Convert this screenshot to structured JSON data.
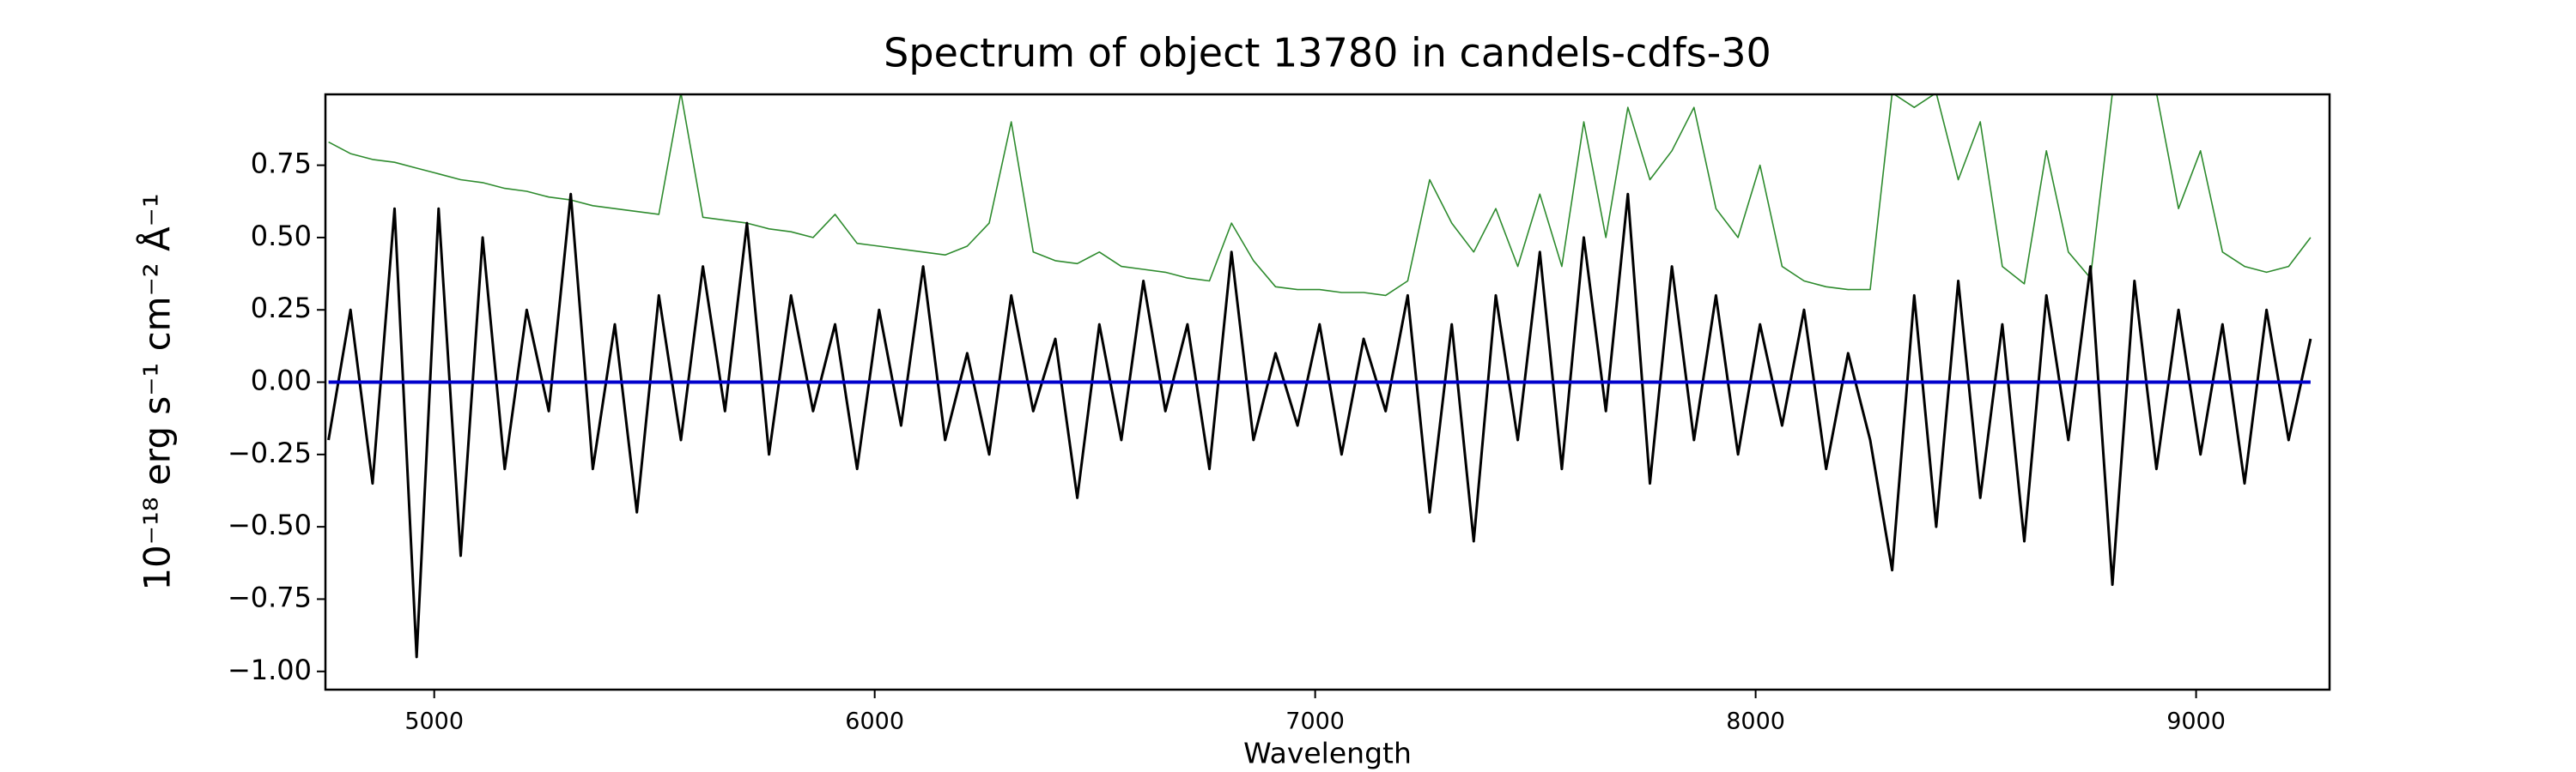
{
  "chart_data": {
    "type": "line",
    "title": "Spectrum of object 13780 in candels-cdfs-30",
    "xlabel": "Wavelength",
    "ylabel": "10⁻¹⁸ erg s⁻¹ cm⁻² Å⁻¹",
    "x": [
      4760,
      4810,
      4860,
      4910,
      4960,
      5010,
      5060,
      5110,
      5160,
      5210,
      5260,
      5310,
      5360,
      5410,
      5460,
      5510,
      5560,
      5610,
      5660,
      5710,
      5760,
      5810,
      5860,
      5910,
      5960,
      6010,
      6060,
      6110,
      6160,
      6210,
      6260,
      6310,
      6360,
      6410,
      6460,
      6510,
      6560,
      6610,
      6660,
      6710,
      6760,
      6810,
      6860,
      6910,
      6960,
      7010,
      7060,
      7110,
      7160,
      7210,
      7260,
      7310,
      7360,
      7410,
      7460,
      7510,
      7560,
      7610,
      7660,
      7710,
      7760,
      7810,
      7860,
      7910,
      7960,
      8010,
      8060,
      8110,
      8160,
      8210,
      8260,
      8310,
      8360,
      8410,
      8460,
      8510,
      8560,
      8610,
      8660,
      8710,
      8760,
      8810,
      8860,
      8910,
      8960,
      9010,
      9060,
      9110,
      9160,
      9210,
      9260
    ],
    "series": [
      {
        "color": "#2e8b2e",
        "width": 1.6,
        "values": [
          0.83,
          0.79,
          0.77,
          0.76,
          0.74,
          0.72,
          0.7,
          0.69,
          0.67,
          0.66,
          0.64,
          0.63,
          0.61,
          0.6,
          0.59,
          0.58,
          1.0,
          0.57,
          0.56,
          0.55,
          0.53,
          0.52,
          0.5,
          0.58,
          0.48,
          0.47,
          0.46,
          0.45,
          0.44,
          0.47,
          0.55,
          0.9,
          0.45,
          0.42,
          0.41,
          0.45,
          0.4,
          0.39,
          0.38,
          0.36,
          0.35,
          0.55,
          0.42,
          0.33,
          0.32,
          0.32,
          0.31,
          0.31,
          0.3,
          0.35,
          0.7,
          0.55,
          0.45,
          0.6,
          0.4,
          0.65,
          0.4,
          0.9,
          0.5,
          0.95,
          0.7,
          0.8,
          0.95,
          0.6,
          0.5,
          0.75,
          0.4,
          0.35,
          0.33,
          0.32,
          0.32,
          1.0,
          0.95,
          1.0,
          0.7,
          0.9,
          0.4,
          0.34,
          0.8,
          0.45,
          0.36,
          1.0,
          1.0,
          1.0,
          0.6,
          0.8,
          0.45,
          0.4,
          0.38,
          0.4,
          0.5
        ]
      },
      {
        "color": "#000000",
        "width": 3,
        "values": [
          -0.2,
          0.25,
          -0.35,
          0.6,
          -0.95,
          0.6,
          -0.6,
          0.5,
          -0.3,
          0.25,
          -0.1,
          0.65,
          -0.3,
          0.2,
          -0.45,
          0.3,
          -0.2,
          0.4,
          -0.1,
          0.55,
          -0.25,
          0.3,
          -0.1,
          0.2,
          -0.3,
          0.25,
          -0.15,
          0.4,
          -0.2,
          0.1,
          -0.25,
          0.3,
          -0.1,
          0.15,
          -0.4,
          0.2,
          -0.2,
          0.35,
          -0.1,
          0.2,
          -0.3,
          0.45,
          -0.2,
          0.1,
          -0.15,
          0.2,
          -0.25,
          0.15,
          -0.1,
          0.3,
          -0.45,
          0.2,
          -0.55,
          0.3,
          -0.2,
          0.45,
          -0.3,
          0.5,
          -0.1,
          0.65,
          -0.35,
          0.4,
          -0.2,
          0.3,
          -0.25,
          0.2,
          -0.15,
          0.25,
          -0.3,
          0.1,
          -0.2,
          -0.65,
          0.3,
          -0.5,
          0.35,
          -0.4,
          0.2,
          -0.55,
          0.3,
          -0.2,
          0.4,
          -0.7,
          0.35,
          -0.3,
          0.25,
          -0.25,
          0.2,
          -0.35,
          0.25,
          -0.2,
          0.15
        ]
      },
      {
        "color": "#0000cc",
        "width": 4,
        "values": [
          0,
          0,
          0,
          0,
          0,
          0,
          0,
          0,
          0,
          0,
          0,
          0,
          0,
          0,
          0,
          0,
          0,
          0,
          0,
          0,
          0,
          0,
          0,
          0,
          0,
          0,
          0,
          0,
          0,
          0,
          0,
          0,
          0,
          0,
          0,
          0,
          0,
          0,
          0,
          0,
          0,
          0,
          0,
          0,
          0,
          0,
          0,
          0,
          0,
          0,
          0,
          0,
          0,
          0,
          0,
          0,
          0,
          0,
          0,
          0,
          0,
          0,
          0,
          0,
          0,
          0,
          0,
          0,
          0,
          0,
          0,
          0,
          0,
          0,
          0,
          0,
          0,
          0,
          0,
          0,
          0,
          0,
          0,
          0,
          0,
          0,
          0,
          0,
          0,
          0,
          0
        ]
      }
    ],
    "xlim": [
      4753,
      9303
    ],
    "ylim": [
      -1.063,
      0.995
    ],
    "xticks": [
      5000,
      6000,
      7000,
      8000,
      9000
    ],
    "yticks": [
      {
        "value": 0.75,
        "label": "0.75"
      },
      {
        "value": 0.5,
        "label": "0.50"
      },
      {
        "value": 0.25,
        "label": "0.25"
      },
      {
        "value": 0,
        "label": "0.00"
      },
      {
        "value": -0.25,
        "label": "−0.25"
      },
      {
        "value": -0.5,
        "label": "−0.50"
      },
      {
        "value": -0.75,
        "label": "−0.75"
      },
      {
        "value": -1,
        "label": "−1.00"
      }
    ],
    "grid": false
  }
}
